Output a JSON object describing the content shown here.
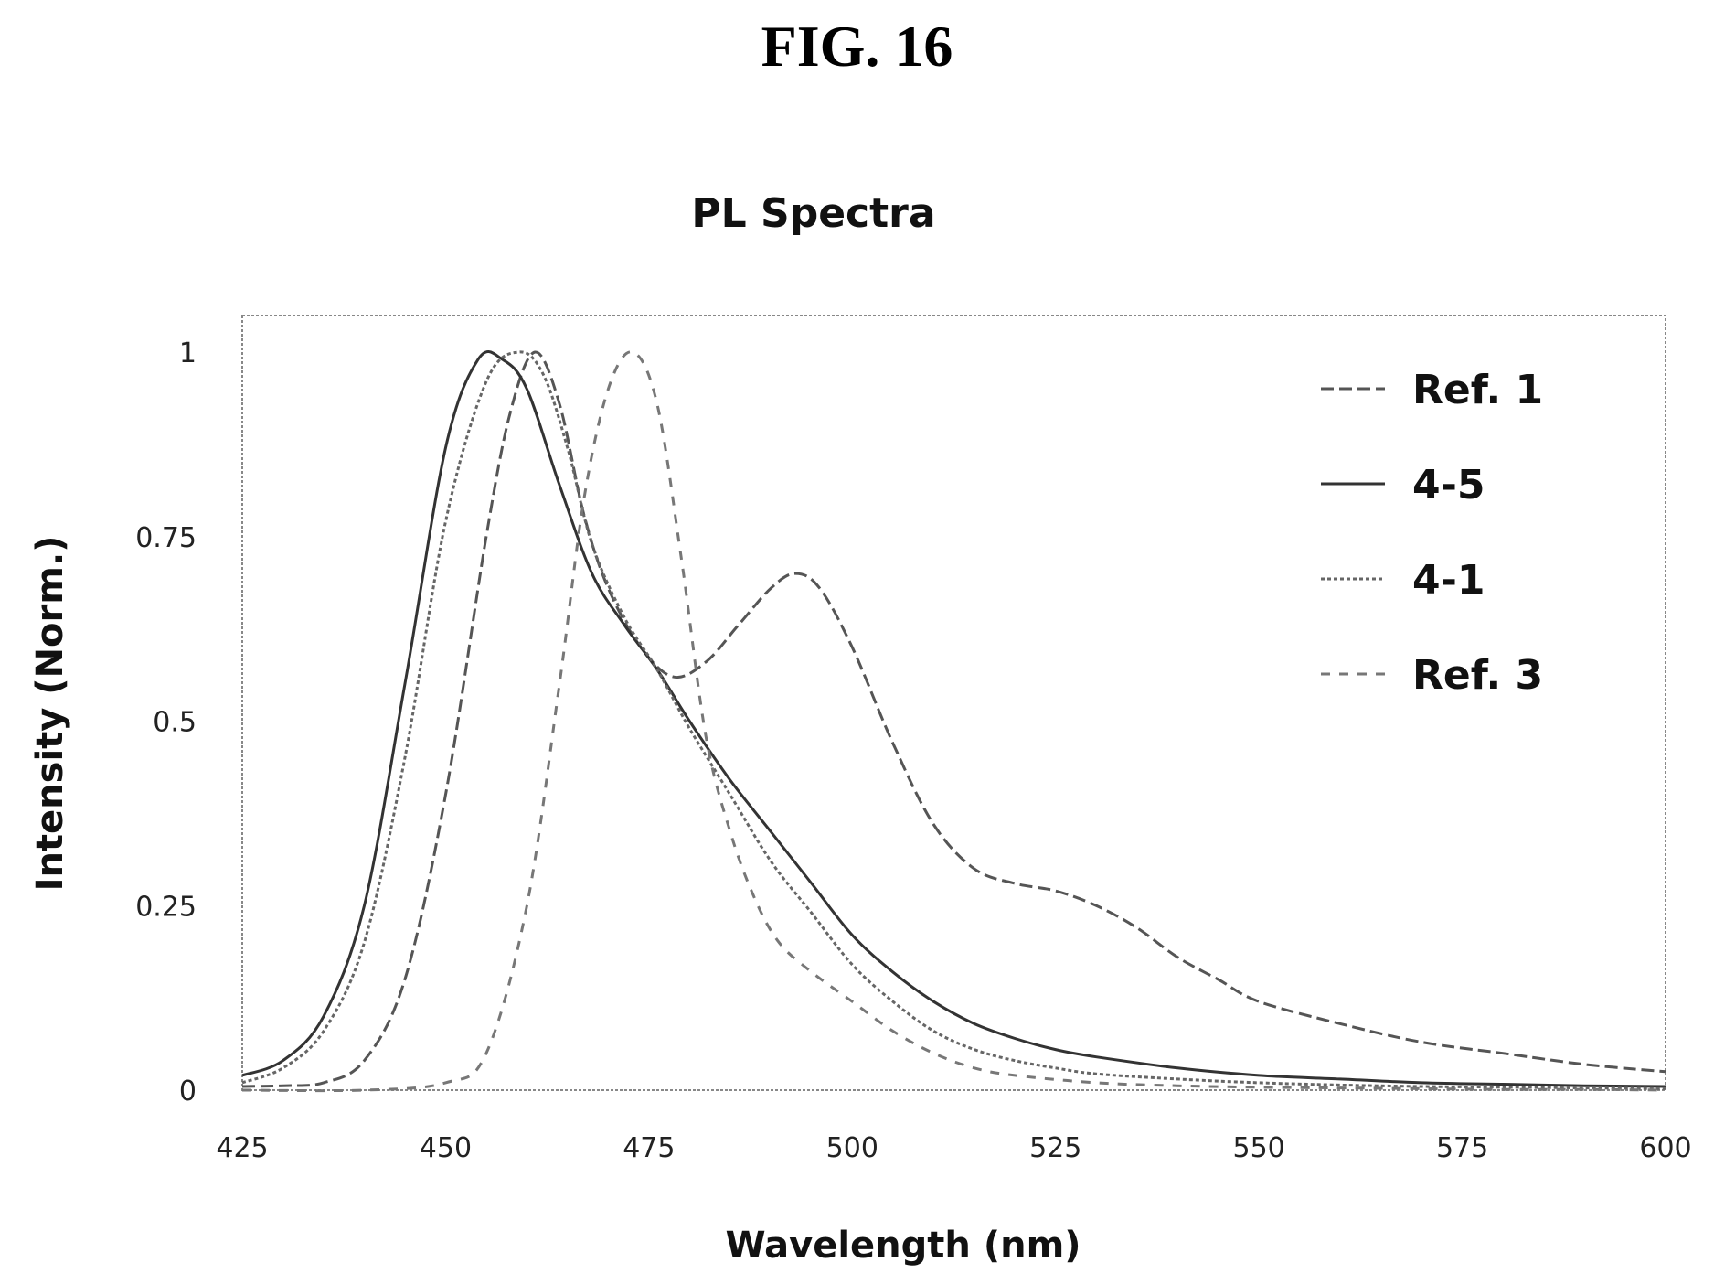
{
  "figure": {
    "title": "FIG. 16"
  },
  "chart_data": {
    "type": "line",
    "title": "PL Spectra",
    "xlabel": "Wavelength (nm)",
    "ylabel": "Intensity (Norm.)",
    "xlim": [
      425,
      600
    ],
    "ylim": [
      0,
      1
    ],
    "xticks": [
      "425",
      "450",
      "475",
      "500",
      "525",
      "550",
      "575",
      "600"
    ],
    "yticks": [
      "0",
      "0.25",
      "0.5",
      "0.75",
      "1"
    ],
    "grid": false,
    "legend_position": "top-right",
    "series": [
      {
        "name": "Ref. 1",
        "color": "#555555",
        "dash": "14 6",
        "x": [
          425,
          430,
          435,
          440,
          445,
          450,
          455,
          458,
          461,
          464,
          467,
          470,
          474,
          478,
          482,
          486,
          490,
          493,
          496,
          500,
          505,
          510,
          515,
          520,
          525,
          530,
          535,
          540,
          545,
          550,
          560,
          570,
          580,
          590,
          600
        ],
        "y": [
          0.005,
          0.006,
          0.01,
          0.04,
          0.15,
          0.4,
          0.75,
          0.92,
          1.0,
          0.93,
          0.78,
          0.68,
          0.6,
          0.56,
          0.58,
          0.63,
          0.68,
          0.7,
          0.68,
          0.6,
          0.47,
          0.36,
          0.3,
          0.28,
          0.27,
          0.25,
          0.22,
          0.18,
          0.15,
          0.12,
          0.09,
          0.065,
          0.05,
          0.035,
          0.025
        ]
      },
      {
        "name": "4-5",
        "color": "#333333",
        "dash": "",
        "x": [
          425,
          430,
          435,
          440,
          445,
          450,
          454,
          457,
          460,
          464,
          468,
          472,
          476,
          480,
          485,
          490,
          495,
          500,
          505,
          510,
          515,
          520,
          525,
          530,
          540,
          550,
          560,
          570,
          580,
          590,
          600
        ],
        "y": [
          0.02,
          0.04,
          0.1,
          0.25,
          0.55,
          0.87,
          0.99,
          0.99,
          0.95,
          0.82,
          0.7,
          0.63,
          0.57,
          0.5,
          0.42,
          0.35,
          0.28,
          0.21,
          0.16,
          0.12,
          0.09,
          0.07,
          0.055,
          0.045,
          0.03,
          0.02,
          0.015,
          0.01,
          0.008,
          0.006,
          0.005
        ]
      },
      {
        "name": "4-1",
        "color": "#666666",
        "dash": "4 3",
        "x": [
          425,
          430,
          435,
          440,
          445,
          450,
          455,
          459,
          462,
          465,
          468,
          472,
          476,
          480,
          485,
          490,
          495,
          500,
          505,
          510,
          515,
          520,
          525,
          530,
          540,
          550,
          560,
          570,
          580,
          590,
          600
        ],
        "y": [
          0.01,
          0.03,
          0.08,
          0.2,
          0.45,
          0.77,
          0.96,
          1.0,
          0.97,
          0.87,
          0.74,
          0.64,
          0.57,
          0.49,
          0.4,
          0.31,
          0.24,
          0.17,
          0.12,
          0.08,
          0.055,
          0.04,
          0.03,
          0.022,
          0.015,
          0.01,
          0.007,
          0.005,
          0.004,
          0.003,
          0.002
        ]
      },
      {
        "name": "Ref. 3",
        "color": "#777777",
        "dash": "10 10",
        "x": [
          425,
          440,
          450,
          455,
          460,
          464,
          467,
          470,
          473,
          476,
          479,
          482,
          485,
          488,
          491,
          495,
          500,
          505,
          510,
          515,
          520,
          530,
          540,
          550,
          560,
          570,
          580,
          590,
          600
        ],
        "y": [
          0.0,
          0.0,
          0.01,
          0.05,
          0.25,
          0.55,
          0.8,
          0.95,
          1.0,
          0.93,
          0.72,
          0.48,
          0.35,
          0.26,
          0.2,
          0.16,
          0.12,
          0.08,
          0.05,
          0.03,
          0.02,
          0.01,
          0.006,
          0.004,
          0.003,
          0.002,
          0.001,
          0.001,
          0.0
        ]
      }
    ]
  }
}
